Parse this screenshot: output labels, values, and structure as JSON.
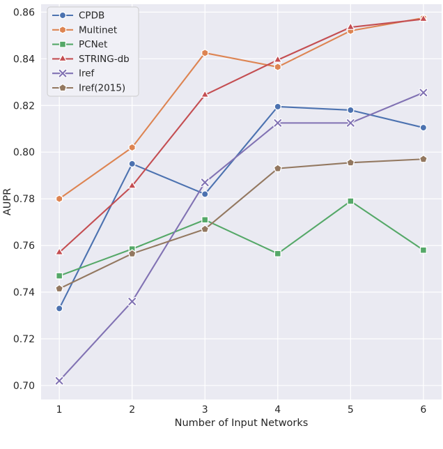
{
  "figure": {
    "background": "#ffffff",
    "plot_background": "#eaeaf2",
    "grid_color": "#ffffff",
    "text_color": "#262626",
    "legend": {
      "background": "#f0f0f6",
      "border": "#cccccc",
      "position": "upper left"
    }
  },
  "chart_data": {
    "type": "line",
    "title": "",
    "xlabel": "Number of Input Networks",
    "ylabel": "AUPR",
    "x": [
      1,
      2,
      3,
      4,
      5,
      6
    ],
    "xticks": [
      1,
      2,
      3,
      4,
      5,
      6
    ],
    "yticks": [
      0.7,
      0.72,
      0.74,
      0.76,
      0.78,
      0.8,
      0.82,
      0.84,
      0.86
    ],
    "xlim": [
      0.75,
      6.25
    ],
    "ylim": [
      0.694,
      0.8634
    ],
    "grid": true,
    "legend_entries": [
      "CPDB",
      "Multinet",
      "PCNet",
      "STRING-db",
      "Iref",
      "Iref(2015)"
    ],
    "series": [
      {
        "name": "CPDB",
        "color": "#4C72B0",
        "marker": "circle",
        "values": [
          0.733,
          0.795,
          0.782,
          0.8195,
          0.818,
          0.8105
        ]
      },
      {
        "name": "Multinet",
        "color": "#DD8452",
        "marker": "hexagon",
        "values": [
          0.78,
          0.802,
          0.8425,
          0.8365,
          0.852,
          0.8575
        ]
      },
      {
        "name": "PCNet",
        "color": "#55A868",
        "marker": "square",
        "values": [
          0.747,
          0.7585,
          0.771,
          0.7565,
          0.779,
          0.758
        ]
      },
      {
        "name": "STRING-db",
        "color": "#C44E52",
        "marker": "triangle",
        "values": [
          0.757,
          0.7855,
          0.8245,
          0.8395,
          0.8535,
          0.857
        ]
      },
      {
        "name": "Iref",
        "color": "#8172B3",
        "marker": "x",
        "values": [
          0.702,
          0.736,
          0.787,
          0.8125,
          0.8125,
          0.8255
        ]
      },
      {
        "name": "Iref(2015)",
        "color": "#937860",
        "marker": "pentagon",
        "values": [
          0.7415,
          0.7565,
          0.767,
          0.793,
          0.7955,
          0.797
        ]
      }
    ]
  }
}
